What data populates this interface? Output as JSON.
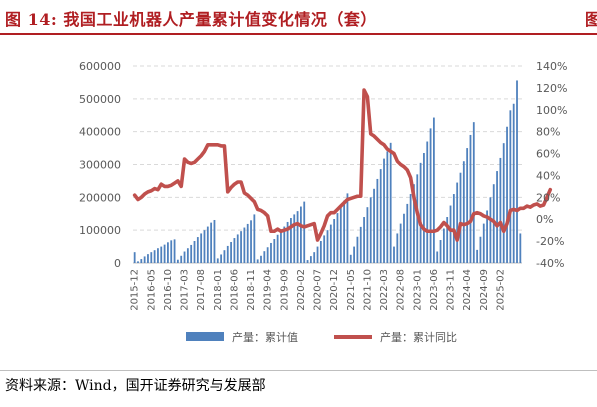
{
  "figure": {
    "title": "图 14:  我国工业机器人产量累计值变化情况（套）",
    "source": "资料来源：Wind，国开证券研究与发展部",
    "edge_fragment": "图"
  },
  "colors": {
    "title": "#b01e22",
    "bar": "#4f81bd",
    "line": "#c0504d",
    "grid": "#d9d9d9",
    "axis_text": "#595959"
  },
  "chart_data": {
    "type": "bar",
    "title": "",
    "xlabel": "",
    "ylabel": "",
    "ylim_left": [
      0,
      600000
    ],
    "yticks_left": [
      "600000",
      "500000",
      "400000",
      "300000",
      "200000",
      "100000",
      "0"
    ],
    "ylim_right": [
      -40,
      140
    ],
    "yticks_right": [
      "140%",
      "120%",
      "100%",
      "80%",
      "60%",
      "40%",
      "20%",
      "0%",
      "-20%",
      "-40%"
    ],
    "x_tick_labels": [
      "2015-12",
      "2016-05",
      "2016-10",
      "2017-03",
      "2017-08",
      "2018-01",
      "2018-06",
      "2018-11",
      "2019-04",
      "2019-09",
      "2020-02",
      "2020-07",
      "2020-12",
      "2021-05",
      "2021-10",
      "2022-03",
      "2022-08",
      "2023-01",
      "2023-06",
      "2023-11",
      "2024-04",
      "2024-09",
      "2025-02"
    ],
    "legend_position": "bottom",
    "grid": "horizontal dashed",
    "x_start": "2015-12",
    "x_end": "2025-02",
    "series": [
      {
        "name": "产量：累计值",
        "type": "bar",
        "axis": "left",
        "values": [
          33000,
          5000,
          12000,
          20000,
          27000,
          33000,
          39000,
          45000,
          50000,
          56000,
          63000,
          69000,
          72000,
          10000,
          22000,
          35000,
          45000,
          55000,
          67000,
          79000,
          90000,
          100000,
          111000,
          123000,
          131000,
          14000,
          26000,
          39000,
          52000,
          64000,
          76000,
          87000,
          97000,
          108000,
          119000,
          130000,
          148000,
          11000,
          22000,
          36000,
          48000,
          61000,
          73000,
          86000,
          98000,
          111000,
          125000,
          137000,
          148000,
          158000,
          172000,
          187000,
          9000,
          21000,
          33000,
          50000,
          67000,
          84000,
          100000,
          117000,
          134000,
          152000,
          170000,
          190000,
          212000,
          25000,
          50000,
          80000,
          110000,
          140000,
          170000,
          200000,
          226000,
          256000,
          286000,
          318000,
          340000,
          366000,
          50000,
          90000,
          120000,
          150000,
          180000,
          210000,
          240000,
          270000,
          305000,
          335000,
          370000,
          410000,
          443000,
          35000,
          70000,
          105000,
          140000,
          175000,
          210000,
          245000,
          275000,
          310000,
          350000,
          390000,
          429000,
          40000,
          80000,
          120000,
          160000,
          200000,
          240000,
          280000,
          320000,
          365000,
          415000,
          465000,
          485000,
          556000,
          90000
        ]
      },
      {
        "name": "产量：累计同比",
        "type": "line",
        "axis": "right",
        "values": [
          22,
          18,
          20,
          23,
          25,
          26,
          28,
          27,
          32,
          30,
          30,
          31,
          33,
          35,
          30,
          55,
          52,
          51,
          52,
          55,
          58,
          62,
          68,
          68,
          68,
          68,
          67,
          67,
          25,
          29,
          32,
          34,
          34,
          24,
          22,
          19,
          16,
          9,
          8,
          6,
          3,
          -11,
          -11,
          -9,
          -11,
          -10,
          -9,
          -7,
          -5,
          -4,
          -6,
          -7,
          -6,
          -5,
          -4,
          -19,
          -13,
          -6,
          3,
          6,
          6,
          9,
          12,
          15,
          18,
          19,
          20,
          21,
          21,
          118,
          112,
          78,
          76,
          73,
          70,
          68,
          64,
          62,
          60,
          53,
          50,
          48,
          45,
          38,
          20,
          6,
          -5,
          -9,
          -11,
          -11,
          -11,
          -10,
          -7,
          -3,
          -6,
          -10,
          -10,
          -19,
          -4,
          -5,
          -4,
          -2,
          5,
          6,
          5,
          3,
          2,
          0,
          -2,
          -6,
          -3,
          -11,
          -4,
          8,
          9,
          8,
          10,
          10,
          12,
          11,
          13,
          14,
          12,
          13,
          20,
          27
        ]
      }
    ]
  }
}
